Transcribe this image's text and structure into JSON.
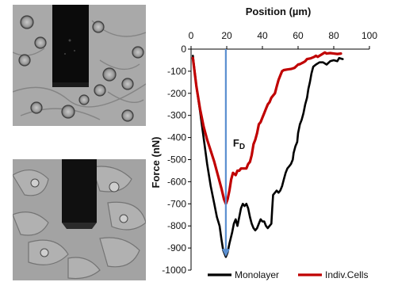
{
  "chart_data": {
    "type": "line",
    "xlabel": "Position (µm)",
    "ylabel": "Force (nN)",
    "x_ticks": [
      0,
      20,
      40,
      60,
      80,
      100
    ],
    "y_ticks": [
      0,
      -100,
      -200,
      -300,
      -400,
      -500,
      -600,
      -700,
      -800,
      -900,
      -1000
    ],
    "xlim": [
      0,
      100
    ],
    "ylim": [
      -1000,
      0
    ],
    "x_axis_position": "top",
    "grid": false,
    "legend_position": "bottom",
    "series": [
      {
        "name": "Monolayer",
        "color": "#000000",
        "points": [
          [
            1,
            -30
          ],
          [
            2,
            -100
          ],
          [
            3,
            -170
          ],
          [
            5,
            -280
          ],
          [
            7,
            -400
          ],
          [
            9,
            -520
          ],
          [
            11,
            -620
          ],
          [
            13,
            -700
          ],
          [
            14.5,
            -760
          ],
          [
            16,
            -800
          ],
          [
            17,
            -860
          ],
          [
            18,
            -910
          ],
          [
            19.5,
            -940
          ],
          [
            20.5,
            -920
          ],
          [
            21.5,
            -880
          ],
          [
            23,
            -830
          ],
          [
            24,
            -790
          ],
          [
            25,
            -770
          ],
          [
            26,
            -800
          ],
          [
            27,
            -760
          ],
          [
            28,
            -720
          ],
          [
            29,
            -700
          ],
          [
            30,
            -710
          ],
          [
            31,
            -700
          ],
          [
            32,
            -720
          ],
          [
            33,
            -760
          ],
          [
            34,
            -790
          ],
          [
            35,
            -810
          ],
          [
            36,
            -820
          ],
          [
            37,
            -810
          ],
          [
            38,
            -790
          ],
          [
            39,
            -770
          ],
          [
            40,
            -780
          ],
          [
            41,
            -780
          ],
          [
            42,
            -800
          ],
          [
            43,
            -810
          ],
          [
            44,
            -800
          ],
          [
            45,
            -790
          ],
          [
            45.5,
            -720
          ],
          [
            46,
            -660
          ],
          [
            47,
            -650
          ],
          [
            48,
            -640
          ],
          [
            49,
            -650
          ],
          [
            50,
            -640
          ],
          [
            51,
            -620
          ],
          [
            52,
            -590
          ],
          [
            53,
            -560
          ],
          [
            54,
            -540
          ],
          [
            55,
            -530
          ],
          [
            56,
            -520
          ],
          [
            57,
            -500
          ],
          [
            57.5,
            -470
          ],
          [
            58.5,
            -440
          ],
          [
            59.5,
            -420
          ],
          [
            60,
            -380
          ],
          [
            61,
            -340
          ],
          [
            62,
            -320
          ],
          [
            63,
            -290
          ],
          [
            64,
            -250
          ],
          [
            65,
            -220
          ],
          [
            65.8,
            -180
          ],
          [
            66.6,
            -150
          ],
          [
            67.5,
            -110
          ],
          [
            68.5,
            -80
          ],
          [
            70,
            -70
          ],
          [
            72,
            -60
          ],
          [
            74,
            -60
          ],
          [
            76,
            -70
          ],
          [
            78,
            -55
          ],
          [
            80,
            -50
          ],
          [
            82,
            -55
          ],
          [
            83,
            -40
          ],
          [
            85,
            -45
          ]
        ]
      },
      {
        "name": "Indiv.Cells",
        "color": "#c00000",
        "points": [
          [
            1,
            -40
          ],
          [
            3,
            -170
          ],
          [
            5,
            -270
          ],
          [
            7,
            -350
          ],
          [
            9,
            -410
          ],
          [
            11,
            -460
          ],
          [
            13,
            -510
          ],
          [
            15,
            -570
          ],
          [
            17,
            -630
          ],
          [
            18.5,
            -680
          ],
          [
            19.5,
            -700
          ],
          [
            20.5,
            -680
          ],
          [
            21.5,
            -640
          ],
          [
            22.5,
            -590
          ],
          [
            23.5,
            -560
          ],
          [
            25,
            -570
          ],
          [
            26,
            -550
          ],
          [
            27,
            -550
          ],
          [
            28,
            -540
          ],
          [
            30,
            -540
          ],
          [
            31,
            -540
          ],
          [
            32,
            -520
          ],
          [
            33,
            -510
          ],
          [
            34,
            -480
          ],
          [
            35,
            -430
          ],
          [
            36,
            -410
          ],
          [
            37,
            -380
          ],
          [
            38,
            -340
          ],
          [
            39,
            -330
          ],
          [
            40,
            -310
          ],
          [
            41,
            -290
          ],
          [
            42,
            -270
          ],
          [
            43,
            -250
          ],
          [
            44,
            -240
          ],
          [
            45,
            -220
          ],
          [
            46,
            -210
          ],
          [
            47,
            -200
          ],
          [
            48,
            -170
          ],
          [
            49,
            -140
          ],
          [
            50,
            -120
          ],
          [
            51,
            -100
          ],
          [
            52,
            -95
          ],
          [
            54,
            -92
          ],
          [
            56,
            -90
          ],
          [
            58,
            -85
          ],
          [
            60,
            -70
          ],
          [
            61,
            -68
          ],
          [
            63,
            -60
          ],
          [
            64,
            -55
          ],
          [
            65,
            -45
          ],
          [
            67,
            -42
          ],
          [
            69,
            -35
          ],
          [
            70,
            -30
          ],
          [
            71,
            -35
          ],
          [
            72,
            -30
          ],
          [
            73,
            -25
          ],
          [
            74,
            -20
          ],
          [
            75,
            -15
          ],
          [
            76,
            -20
          ],
          [
            78,
            -18
          ],
          [
            80,
            -20
          ],
          [
            82,
            -22
          ],
          [
            84,
            -20
          ]
        ]
      }
    ],
    "annotations": [
      {
        "label": "FD",
        "main": "F",
        "sub": "D",
        "arrow_x": 19.5,
        "arrow_from": 0,
        "arrow_to": -940,
        "color": "#5b8fd0"
      }
    ]
  },
  "images": [
    {
      "id": "micro-top",
      "description_icon": "microscope-image-icon"
    },
    {
      "id": "micro-bottom",
      "description_icon": "microscope-image-icon"
    }
  ]
}
